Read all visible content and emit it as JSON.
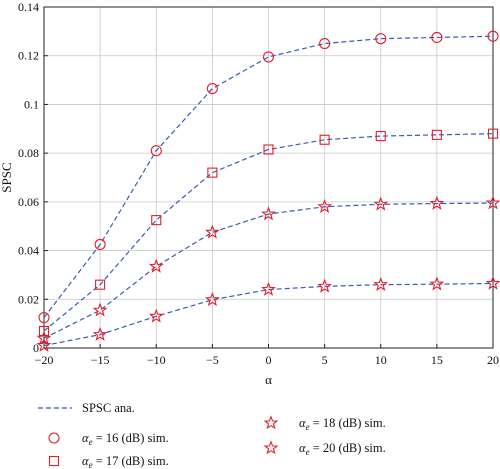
{
  "chart_data": {
    "type": "line",
    "xlabel": "α",
    "ylabel": "SPSC",
    "xlim": [
      -20,
      20
    ],
    "ylim": [
      0,
      0.14
    ],
    "xticks": [
      "−20",
      "−15",
      "−10",
      "−5",
      "0",
      "5",
      "10",
      "15",
      "20"
    ],
    "yticks": [
      "0",
      "0.02",
      "0.04",
      "0.06",
      "0.08",
      "0.1",
      "0.12",
      "0.14"
    ],
    "grid": true,
    "x": [
      -20,
      -15,
      -10,
      -5,
      0,
      5,
      10,
      15,
      20
    ],
    "series": [
      {
        "marker": "circle",
        "values": [
          0.0125,
          0.0425,
          0.081,
          0.1065,
          0.1195,
          0.125,
          0.127,
          0.1275,
          0.128
        ]
      },
      {
        "marker": "square",
        "values": [
          0.007,
          0.026,
          0.0525,
          0.072,
          0.0815,
          0.0855,
          0.087,
          0.0875,
          0.088
        ]
      },
      {
        "marker": "star",
        "values": [
          0.004,
          0.0155,
          0.0335,
          0.0475,
          0.055,
          0.058,
          0.059,
          0.0593,
          0.0595
        ]
      },
      {
        "marker": "star",
        "values": [
          0.001,
          0.0055,
          0.013,
          0.0198,
          0.024,
          0.0253,
          0.026,
          0.0262,
          0.0265
        ]
      }
    ],
    "legend": {
      "placement": "bottom",
      "entries": [
        {
          "marker": "dashed-line",
          "sym": "",
          "sub": "",
          "text": "SPSC ana."
        },
        {
          "marker": "circle",
          "sym": "α",
          "sub": "e",
          "text": " = 16 (dB) sim."
        },
        {
          "marker": "square",
          "sym": "α",
          "sub": "e",
          "text": " = 17 (dB) sim."
        },
        {
          "marker": "star",
          "sym": "α",
          "sub": "e",
          "text": " = 18 (dB) sim."
        },
        {
          "marker": "star",
          "sym": "α",
          "sub": "e",
          "text": " = 20 (dB) sim."
        }
      ]
    },
    "colors": {
      "line": "#3b5bb5",
      "marker": "#e0202a",
      "grid": "#c8c8c8",
      "axis": "#222222"
    }
  }
}
